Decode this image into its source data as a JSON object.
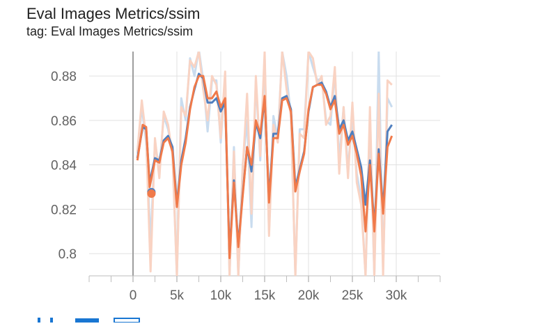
{
  "card": {
    "title": "Eval Images Metrics/ssim",
    "tag": "tag: Eval Images Metrics/ssim"
  },
  "colors": {
    "series_blue": "#4f7fbf",
    "series_orange": "#f07a4a",
    "raw_blue": "#c9dcef",
    "raw_orange": "#f9d3c3",
    "grid": "#e0e0e0",
    "zero_line": "#9e9e9e"
  },
  "toolbar": {
    "icons": [
      "fit-domain-icon",
      "data-download-icon",
      "expand-icon"
    ]
  },
  "chart_data": {
    "type": "line",
    "xlim": [
      -5000,
      35000
    ],
    "ylim": [
      0.79,
      0.891
    ],
    "x_ticks": [
      0,
      5000,
      10000,
      15000,
      20000,
      25000,
      30000
    ],
    "x_tick_labels": [
      "0",
      "5k",
      "10k",
      "15k",
      "20k",
      "25k",
      "30k"
    ],
    "y_ticks": [
      0.8,
      0.82,
      0.84,
      0.86,
      0.88
    ],
    "y_tick_labels": [
      "0.8",
      "0.82",
      "0.84",
      "0.86",
      "0.88"
    ],
    "grid": true,
    "series": [
      {
        "color": "#4f7fbf",
        "x": [
          500,
          1100,
          1500,
          1900,
          2500,
          3000,
          3500,
          4000,
          4500,
          5000,
          5500,
          6000,
          6500,
          7000,
          7500,
          8000,
          8500,
          9000,
          9500,
          10000,
          10500,
          11000,
          11500,
          12000,
          12500,
          13000,
          13500,
          14000,
          14500,
          15000,
          15500,
          16000,
          16500,
          17000,
          17500,
          18000,
          18500,
          19000,
          19500,
          20000,
          20500,
          21000,
          21500,
          22000,
          22500,
          23000,
          23500,
          24000,
          24500,
          25000,
          25500,
          26000,
          26500,
          27000,
          27500,
          28000,
          28500,
          29000,
          29500
        ],
        "y": [
          0.843,
          0.857,
          0.856,
          0.832,
          0.843,
          0.842,
          0.851,
          0.853,
          0.848,
          0.822,
          0.842,
          0.852,
          0.866,
          0.874,
          0.881,
          0.879,
          0.868,
          0.868,
          0.87,
          0.864,
          0.868,
          0.8,
          0.833,
          0.804,
          0.827,
          0.848,
          0.837,
          0.859,
          0.852,
          0.87,
          0.825,
          0.854,
          0.854,
          0.87,
          0.871,
          0.865,
          0.83,
          0.838,
          0.846,
          0.864,
          0.875,
          0.876,
          0.877,
          0.873,
          0.866,
          0.871,
          0.856,
          0.86,
          0.851,
          0.855,
          0.847,
          0.839,
          0.822,
          0.842,
          0.812,
          0.847,
          0.82,
          0.855,
          0.858
        ]
      },
      {
        "color": "#f07a4a",
        "x": [
          500,
          1100,
          1500,
          1900,
          2500,
          3000,
          3500,
          4000,
          4500,
          5000,
          5500,
          6000,
          6500,
          7000,
          7500,
          8000,
          8500,
          9000,
          9500,
          10000,
          10500,
          11000,
          11500,
          12000,
          12500,
          13000,
          13500,
          14000,
          14500,
          15000,
          15500,
          16000,
          16500,
          17000,
          17500,
          18000,
          18500,
          19000,
          19500,
          20000,
          20500,
          21000,
          21500,
          22000,
          22500,
          23000,
          23500,
          24000,
          24500,
          25000,
          25500,
          26000,
          26500,
          27000,
          27500,
          28000,
          28500,
          29000,
          29500
        ],
        "y": [
          0.842,
          0.858,
          0.857,
          0.83,
          0.842,
          0.841,
          0.85,
          0.852,
          0.846,
          0.821,
          0.84,
          0.85,
          0.865,
          0.875,
          0.88,
          0.88,
          0.87,
          0.87,
          0.873,
          0.866,
          0.87,
          0.798,
          0.832,
          0.803,
          0.826,
          0.848,
          0.84,
          0.86,
          0.854,
          0.871,
          0.823,
          0.852,
          0.852,
          0.869,
          0.87,
          0.864,
          0.828,
          0.837,
          0.845,
          0.865,
          0.875,
          0.876,
          0.876,
          0.872,
          0.865,
          0.869,
          0.854,
          0.858,
          0.849,
          0.853,
          0.845,
          0.835,
          0.81,
          0.84,
          0.81,
          0.845,
          0.818,
          0.848,
          0.853
        ]
      },
      {
        "color": "#c9dcef",
        "x": [
          500,
          1000,
          1500,
          2000,
          2500,
          3000,
          3500,
          4000,
          4500,
          5000,
          5500,
          6000,
          6500,
          7000,
          7500,
          8000,
          8500,
          9000,
          9500,
          10000,
          10500,
          11000,
          11500,
          12000,
          12500,
          13000,
          13500,
          14000,
          14500,
          15000,
          15500,
          16000,
          16500,
          17000,
          17500,
          18000,
          18500,
          19000,
          19500,
          20000,
          20500,
          21000,
          21500,
          22000,
          22500,
          23000,
          23500,
          24000,
          24500,
          25000,
          25500,
          26000,
          26500,
          27000,
          27500,
          28000,
          28500,
          29000,
          29500
        ],
        "y": [
          0.845,
          0.866,
          0.85,
          0.805,
          0.85,
          0.838,
          0.862,
          0.856,
          0.845,
          0.79,
          0.87,
          0.86,
          0.888,
          0.88,
          0.892,
          0.878,
          0.855,
          0.878,
          0.878,
          0.85,
          0.88,
          0.79,
          0.848,
          0.79,
          0.84,
          0.86,
          0.812,
          0.878,
          0.842,
          0.888,
          0.81,
          0.862,
          0.852,
          0.891,
          0.88,
          0.862,
          0.79,
          0.856,
          0.856,
          0.891,
          0.884,
          0.878,
          0.879,
          0.86,
          0.858,
          0.882,
          0.842,
          0.866,
          0.838,
          0.862,
          0.836,
          0.825,
          0.79,
          0.86,
          0.79,
          0.891,
          0.793,
          0.87,
          0.866
        ]
      },
      {
        "color": "#f9d3c3",
        "x": [
          500,
          1000,
          1500,
          2000,
          2500,
          3000,
          3500,
          4000,
          4500,
          5000,
          5500,
          6000,
          6500,
          7000,
          7500,
          8000,
          8500,
          9000,
          9500,
          10000,
          10500,
          11000,
          11500,
          12000,
          12500,
          13000,
          13500,
          14000,
          14500,
          15000,
          15500,
          16000,
          16500,
          17000,
          17500,
          18000,
          18500,
          19000,
          19500,
          20000,
          20500,
          21000,
          21500,
          22000,
          22500,
          23000,
          23500,
          24000,
          24500,
          25000,
          25500,
          26000,
          26500,
          27000,
          27500,
          28000,
          28500,
          29000,
          29500
        ],
        "y": [
          0.846,
          0.869,
          0.852,
          0.792,
          0.852,
          0.834,
          0.864,
          0.858,
          0.844,
          0.79,
          0.866,
          0.862,
          0.887,
          0.884,
          0.891,
          0.874,
          0.86,
          0.88,
          0.876,
          0.852,
          0.882,
          0.79,
          0.846,
          0.79,
          0.838,
          0.872,
          0.818,
          0.88,
          0.844,
          0.891,
          0.808,
          0.858,
          0.85,
          0.891,
          0.874,
          0.862,
          0.79,
          0.854,
          0.852,
          0.891,
          0.888,
          0.876,
          0.88,
          0.858,
          0.862,
          0.884,
          0.836,
          0.866,
          0.834,
          0.868,
          0.832,
          0.822,
          0.79,
          0.866,
          0.79,
          0.872,
          0.79,
          0.878,
          0.876
        ]
      }
    ],
    "markers": [
      {
        "x": 2100,
        "y": 0.8277,
        "color": "#4f7fbf"
      },
      {
        "x": 2100,
        "y": 0.827,
        "color": "#f07a4a"
      }
    ]
  }
}
